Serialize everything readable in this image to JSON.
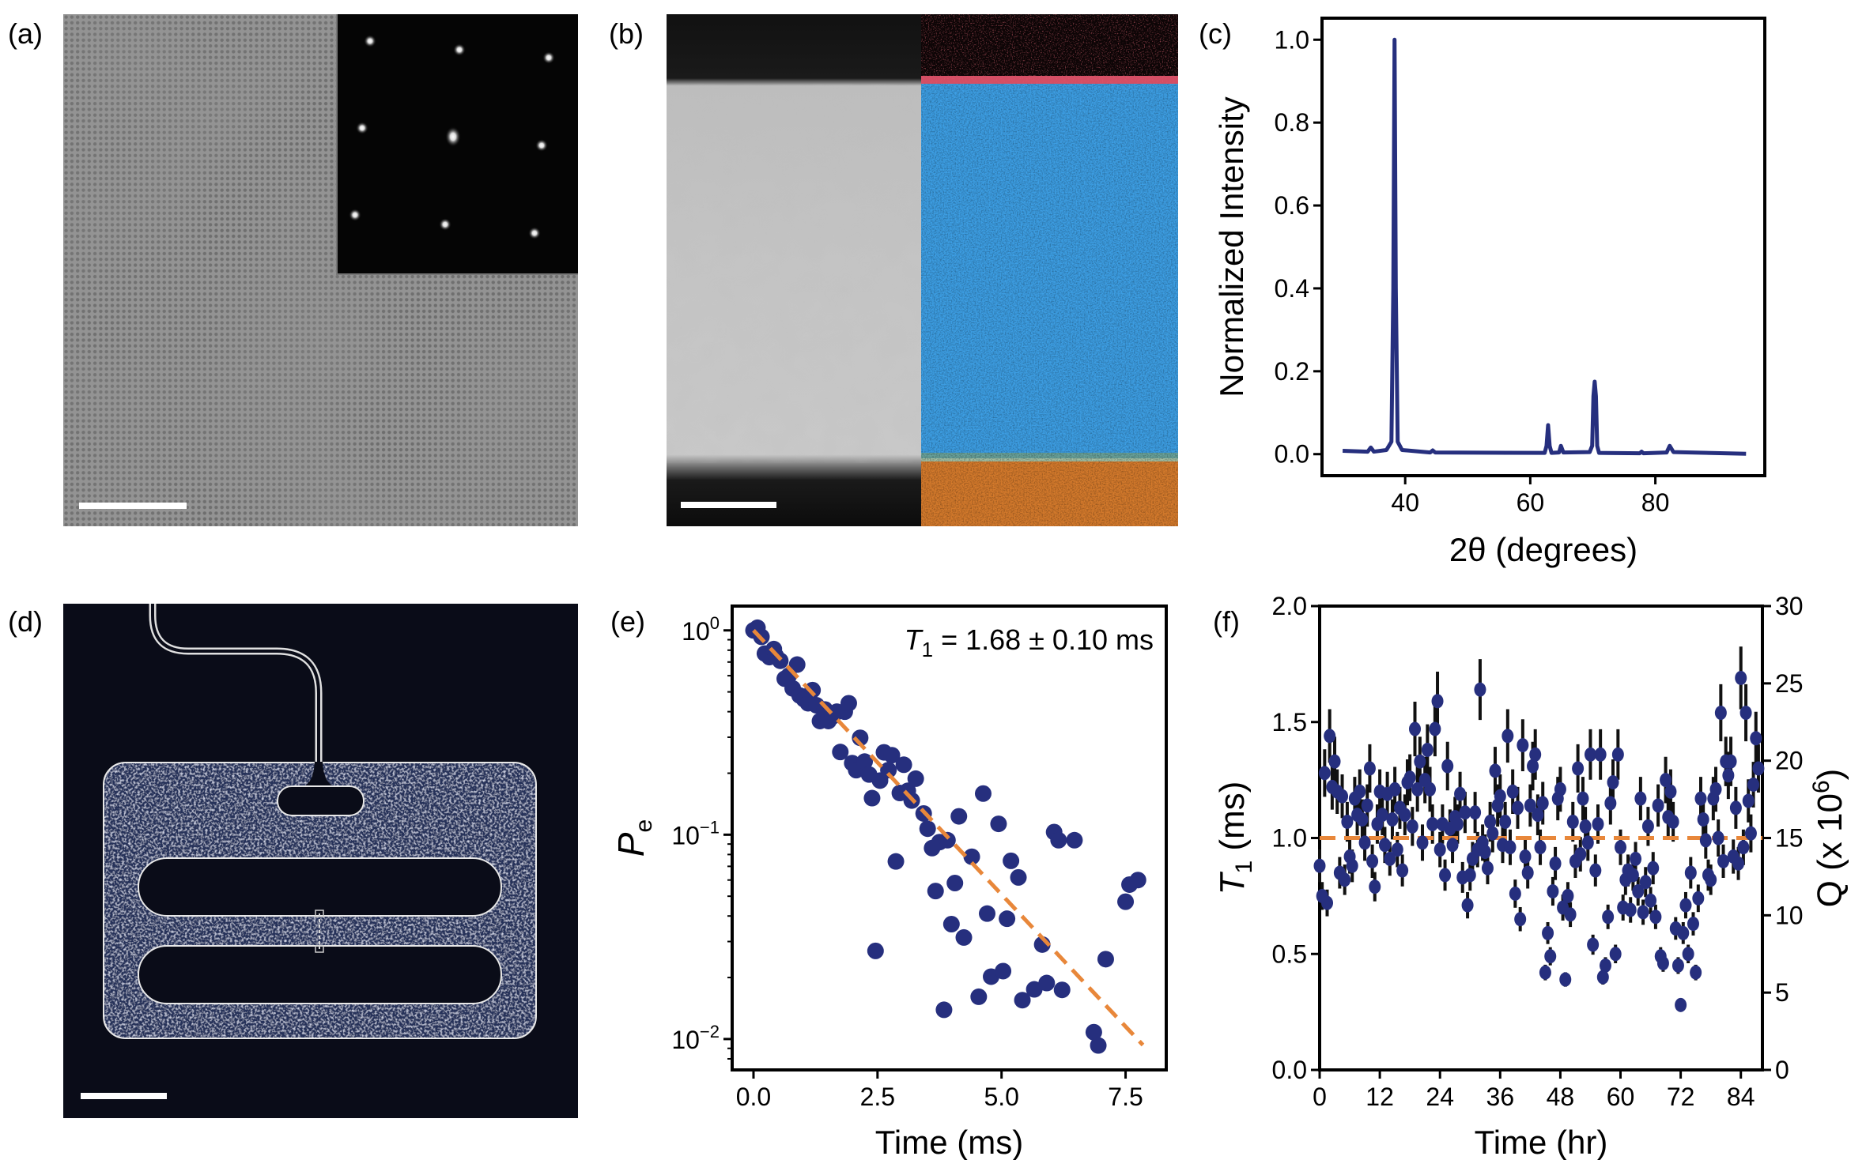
{
  "panels": {
    "a": "(a)",
    "b": "(b)",
    "c": "(c)",
    "d": "(d)",
    "e": "(e)",
    "f": "(f)"
  },
  "images": {
    "a": {
      "content": "lattice micrograph with diffraction pattern inset",
      "base_color": "#8a8a8a",
      "inset_color": "#050505"
    },
    "b": {
      "content": "cross-section image and elemental map",
      "gray_color": "#c9c9c9",
      "blue_color": "#3d9ee3",
      "orange_color": "#d47a2c",
      "red_color": "#c0303a",
      "pink_color": "#e9566f"
    },
    "d": {
      "content": "device micrograph",
      "background_color": "#0a0c18",
      "pad_color": "#28305a",
      "outline_color": "#e8e8e8"
    }
  },
  "colors": {
    "series": "#262f7e",
    "fit": "#e8873a",
    "error": "#111111"
  },
  "chart_data": [
    {
      "id": "c",
      "type": "line",
      "title": "",
      "xlabel": "2θ (degrees)",
      "ylabel": "Normalized Intensity",
      "xlim": [
        26.7,
        97.5
      ],
      "ylim": [
        -0.052,
        1.052
      ],
      "xticks": [
        40,
        60,
        80
      ],
      "xtick_labels": [
        "40",
        "60",
        "80"
      ],
      "yticks": [
        0,
        0.2,
        0.4,
        0.6,
        0.8,
        1.0
      ],
      "ytick_labels": [
        "0.0",
        "0.2",
        "0.4",
        "0.6",
        "0.8",
        "1.0"
      ],
      "grid": false,
      "points": [
        [
          30,
          0.008
        ],
        [
          34,
          0.006
        ],
        [
          34.5,
          0.016
        ],
        [
          35,
          0.006
        ],
        [
          37,
          0.01
        ],
        [
          37.8,
          0.03
        ],
        [
          38.1,
          0.4
        ],
        [
          38.3,
          1.0
        ],
        [
          38.5,
          0.4
        ],
        [
          38.8,
          0.03
        ],
        [
          39.5,
          0.01
        ],
        [
          44,
          0.004
        ],
        [
          44.4,
          0.009
        ],
        [
          44.8,
          0.004
        ],
        [
          62.3,
          0.003
        ],
        [
          62.6,
          0.02
        ],
        [
          62.85,
          0.07
        ],
        [
          63.1,
          0.02
        ],
        [
          63.4,
          0.003
        ],
        [
          64.6,
          0.004
        ],
        [
          64.9,
          0.02
        ],
        [
          65.3,
          0.004
        ],
        [
          69.5,
          0.005
        ],
        [
          69.9,
          0.02
        ],
        [
          70.1,
          0.14
        ],
        [
          70.3,
          0.175
        ],
        [
          70.5,
          0.14
        ],
        [
          70.7,
          0.02
        ],
        [
          71,
          0.003
        ],
        [
          77.5,
          0.002
        ],
        [
          77.8,
          0.006
        ],
        [
          78.1,
          0.002
        ],
        [
          81.8,
          0.004
        ],
        [
          82.3,
          0.02
        ],
        [
          82.9,
          0.005
        ],
        [
          94.5,
          0.001
        ]
      ]
    },
    {
      "id": "e",
      "type": "scatter",
      "yscale": "log",
      "xlabel": "Time (ms)",
      "ylabel": {
        "main": "P",
        "sub": "e"
      },
      "xlim": [
        -0.43,
        8.32
      ],
      "ylim": [
        0.00706,
        1.315
      ],
      "xticks": [
        0,
        2.5,
        5,
        7.5
      ],
      "xtick_labels": [
        "0.0",
        "2.5",
        "5.0",
        "7.5"
      ],
      "yticks": [
        1,
        0.1,
        0.01
      ],
      "ytick_base": "10",
      "ytick_exponents": [
        "0",
        "−1",
        "−2"
      ],
      "annotation": {
        "symbol": "T",
        "sub": "1",
        "text": " = 1.68 ± 0.10 ms"
      },
      "fit": {
        "type": "exponential",
        "T1": 1.68,
        "x_range": [
          0,
          7.85
        ]
      },
      "points": [
        [
          0,
          1.0
        ],
        [
          0.08,
          1.03
        ],
        [
          0.16,
          0.93
        ],
        [
          0.23,
          0.77
        ],
        [
          0.32,
          0.74
        ],
        [
          0.41,
          0.81
        ],
        [
          0.45,
          0.75
        ],
        [
          0.54,
          0.71
        ],
        [
          0.63,
          0.58
        ],
        [
          0.71,
          0.6
        ],
        [
          0.79,
          0.52
        ],
        [
          0.88,
          0.68
        ],
        [
          0.93,
          0.48
        ],
        [
          1.02,
          0.46
        ],
        [
          1.1,
          0.44
        ],
        [
          1.19,
          0.51
        ],
        [
          1.27,
          0.43
        ],
        [
          1.34,
          0.36
        ],
        [
          1.44,
          0.41
        ],
        [
          1.51,
          0.36
        ],
        [
          1.6,
          0.38
        ],
        [
          1.68,
          0.4
        ],
        [
          1.84,
          0.4
        ],
        [
          1.92,
          0.44
        ],
        [
          1.75,
          0.254
        ],
        [
          1.99,
          0.224
        ],
        [
          2.07,
          0.207
        ],
        [
          2.15,
          0.298
        ],
        [
          2.24,
          0.228
        ],
        [
          2.33,
          0.197
        ],
        [
          2.39,
          0.151
        ],
        [
          2.46,
          0.027
        ],
        [
          2.55,
          0.184
        ],
        [
          2.63,
          0.253
        ],
        [
          2.72,
          0.207
        ],
        [
          2.79,
          0.245
        ],
        [
          2.87,
          0.074
        ],
        [
          2.95,
          0.16
        ],
        [
          3.03,
          0.22
        ],
        [
          3.11,
          0.164
        ],
        [
          3.19,
          0.147
        ],
        [
          3.27,
          0.188
        ],
        [
          3.43,
          0.127
        ],
        [
          3.51,
          0.107
        ],
        [
          3.6,
          0.086
        ],
        [
          3.67,
          0.053
        ],
        [
          3.75,
          0.092
        ],
        [
          3.84,
          0.0139
        ],
        [
          3.91,
          0.094
        ],
        [
          3.99,
          0.0365
        ],
        [
          4.06,
          0.058
        ],
        [
          4.14,
          0.123
        ],
        [
          4.24,
          0.0314
        ],
        [
          4.4,
          0.078
        ],
        [
          4.54,
          0.0161
        ],
        [
          4.63,
          0.159
        ],
        [
          4.71,
          0.0411
        ],
        [
          4.79,
          0.0202
        ],
        [
          4.94,
          0.113
        ],
        [
          5.03,
          0.0215
        ],
        [
          5.11,
          0.0388
        ],
        [
          5.19,
          0.0745
        ],
        [
          5.34,
          0.0618
        ],
        [
          5.42,
          0.0155
        ],
        [
          5.66,
          0.0175
        ],
        [
          5.82,
          0.029
        ],
        [
          5.91,
          0.0188
        ],
        [
          6.06,
          0.103
        ],
        [
          6.15,
          0.094
        ],
        [
          6.22,
          0.0174
        ],
        [
          6.47,
          0.094
        ],
        [
          6.86,
          0.0108
        ],
        [
          6.95,
          0.0093
        ],
        [
          7.1,
          0.0246
        ],
        [
          7.5,
          0.047
        ],
        [
          7.58,
          0.057
        ],
        [
          7.75,
          0.06
        ]
      ]
    },
    {
      "id": "f",
      "type": "scatter",
      "xlabel": "Time (hr)",
      "ylabel": {
        "main": "T",
        "sub": "1",
        "unit": " (ms)"
      },
      "y2label": {
        "main": "Q (x 10",
        "sup": "6",
        "end": ")"
      },
      "xlim": [
        0,
        88.3
      ],
      "ylim": [
        0,
        2.0
      ],
      "y2lim": [
        0,
        30
      ],
      "xticks": [
        0,
        12,
        24,
        36,
        48,
        60,
        72,
        84
      ],
      "xtick_labels": [
        "0",
        "12",
        "24",
        "36",
        "48",
        "60",
        "72",
        "84"
      ],
      "yticks": [
        0,
        0.5,
        1.0,
        1.5,
        2.0
      ],
      "ytick_labels": [
        "0.0",
        "0.5",
        "1.0",
        "1.5",
        "2.0"
      ],
      "y2ticks": [
        0,
        5,
        10,
        15,
        20,
        25,
        30
      ],
      "y2tick_labels": [
        "0",
        "5",
        "10",
        "15",
        "20",
        "25",
        "30"
      ],
      "reference_line": 1.0,
      "yerr_relative": 0.08,
      "points": [
        [
          0,
          0.88
        ],
        [
          0.5,
          0.75
        ],
        [
          1,
          1.28
        ],
        [
          1.5,
          0.72
        ],
        [
          2,
          1.44
        ],
        [
          2.5,
          1.22
        ],
        [
          3,
          1.33
        ],
        [
          3.5,
          1.2
        ],
        [
          4,
          0.85
        ],
        [
          4.5,
          1.18
        ],
        [
          5,
          0.82
        ],
        [
          5.5,
          1.07
        ],
        [
          6,
          0.92
        ],
        [
          6.5,
          0.88
        ],
        [
          7,
          1.17
        ],
        [
          7.5,
          1.1
        ],
        [
          8,
          1.2
        ],
        [
          8.5,
          1.08
        ],
        [
          9,
          0.98
        ],
        [
          9.5,
          1.14
        ],
        [
          10,
          1.3
        ],
        [
          10.5,
          0.9
        ],
        [
          11,
          0.79
        ],
        [
          11.5,
          1.06
        ],
        [
          12,
          1.2
        ],
        [
          12.5,
          1.1
        ],
        [
          13,
          0.97
        ],
        [
          13.5,
          1.19
        ],
        [
          14,
          0.91
        ],
        [
          14.5,
          1.08
        ],
        [
          15,
          1.21
        ],
        [
          15.5,
          0.95
        ],
        [
          16,
          1.13
        ],
        [
          16.5,
          0.86
        ],
        [
          17,
          1.1
        ],
        [
          17.5,
          1.24
        ],
        [
          18,
          1.26
        ],
        [
          18.5,
          1.05
        ],
        [
          19,
          1.47
        ],
        [
          19.5,
          1.21
        ],
        [
          20,
          1.33
        ],
        [
          20.5,
          0.98
        ],
        [
          21,
          1.25
        ],
        [
          21.5,
          1.38
        ],
        [
          22,
          1.21
        ],
        [
          22.5,
          1.06
        ],
        [
          23,
          1.47
        ],
        [
          23.5,
          1.59
        ],
        [
          24,
          0.95
        ],
        [
          24.5,
          1.06
        ],
        [
          25,
          0.84
        ],
        [
          25.5,
          1.31
        ],
        [
          26,
          1.04
        ],
        [
          26.5,
          0.97
        ],
        [
          27,
          1.09
        ],
        [
          27.5,
          1.06
        ],
        [
          28,
          1.19
        ],
        [
          28.5,
          0.83
        ],
        [
          29,
          1.11
        ],
        [
          29.5,
          0.71
        ],
        [
          30,
          0.84
        ],
        [
          30.5,
          0.91
        ],
        [
          31,
          1.11
        ],
        [
          31.5,
          0.95
        ],
        [
          32,
          1.64
        ],
        [
          32.5,
          0.98
        ],
        [
          33,
          0.94
        ],
        [
          33.5,
          0.87
        ],
        [
          34,
          1.07
        ],
        [
          34.5,
          1.02
        ],
        [
          35,
          1.29
        ],
        [
          35.5,
          1.14
        ],
        [
          36,
          1.18
        ],
        [
          36.5,
          0.97
        ],
        [
          37,
          1.07
        ],
        [
          37.5,
          1.44
        ],
        [
          38,
          0.96
        ],
        [
          38.5,
          1.2
        ],
        [
          39,
          0.76
        ],
        [
          39.5,
          1.13
        ],
        [
          40,
          0.65
        ],
        [
          40.5,
          1.4
        ],
        [
          41,
          0.92
        ],
        [
          41.5,
          0.85
        ],
        [
          42,
          1.14
        ],
        [
          42.5,
          1.31
        ],
        [
          43,
          1.36
        ],
        [
          43.5,
          1.1
        ],
        [
          44,
          0.96
        ],
        [
          44.5,
          1.15
        ],
        [
          45,
          0.42
        ],
        [
          45.5,
          0.59
        ],
        [
          46,
          0.49
        ],
        [
          46.5,
          0.77
        ],
        [
          47,
          0.89
        ],
        [
          47.5,
          1.17
        ],
        [
          48,
          1.21
        ],
        [
          48.5,
          0.7
        ],
        [
          49,
          0.39
        ],
        [
          49.5,
          0.75
        ],
        [
          50,
          0.67
        ],
        [
          50.5,
          1.07
        ],
        [
          51,
          0.9
        ],
        [
          51.5,
          1.3
        ],
        [
          52,
          0.93
        ],
        [
          52.5,
          1.17
        ],
        [
          53,
          1.05
        ],
        [
          53.5,
          0.98
        ],
        [
          54,
          1.36
        ],
        [
          54.5,
          0.54
        ],
        [
          55,
          0.86
        ],
        [
          55.5,
          1.06
        ],
        [
          56,
          1.36
        ],
        [
          56.5,
          0.4
        ],
        [
          57,
          0.45
        ],
        [
          57.5,
          0.66
        ],
        [
          58,
          1.15
        ],
        [
          58.5,
          1.24
        ],
        [
          59,
          0.5
        ],
        [
          59.5,
          1.36
        ],
        [
          60,
          0.96
        ],
        [
          60.5,
          0.7
        ],
        [
          61,
          0.82
        ],
        [
          61.5,
          0.86
        ],
        [
          62,
          0.69
        ],
        [
          62.5,
          0.84
        ],
        [
          63,
          0.91
        ],
        [
          63.5,
          0.77
        ],
        [
          64,
          1.17
        ],
        [
          64.5,
          0.68
        ],
        [
          65,
          0.81
        ],
        [
          65.5,
          1.05
        ],
        [
          66,
          0.73
        ],
        [
          66.5,
          0.87
        ],
        [
          67,
          0.66
        ],
        [
          67.5,
          1.14
        ],
        [
          68,
          0.49
        ],
        [
          68.5,
          0.46
        ],
        [
          69,
          1.25
        ],
        [
          69.5,
          1.09
        ],
        [
          70,
          1.2
        ],
        [
          70.5,
          1.07
        ],
        [
          71,
          0.61
        ],
        [
          71.5,
          0.45
        ],
        [
          72,
          0.28
        ],
        [
          72.5,
          0.59
        ],
        [
          73,
          0.71
        ],
        [
          73.5,
          0.5
        ],
        [
          74,
          0.85
        ],
        [
          74.5,
          0.63
        ],
        [
          75,
          0.42
        ],
        [
          75.5,
          0.74
        ],
        [
          76,
          1.17
        ],
        [
          76.5,
          1.08
        ],
        [
          77,
          0.99
        ],
        [
          77.5,
          0.84
        ],
        [
          78,
          0.82
        ],
        [
          78.5,
          1.17
        ],
        [
          79,
          1.21
        ],
        [
          79.5,
          1.0
        ],
        [
          80,
          1.54
        ],
        [
          80.5,
          0.9
        ],
        [
          81,
          1.33
        ],
        [
          81.5,
          1.27
        ],
        [
          82,
          1.33
        ],
        [
          82.5,
          0.92
        ],
        [
          83,
          1.13
        ],
        [
          83.5,
          0.89
        ],
        [
          84,
          1.69
        ],
        [
          84.5,
          0.96
        ],
        [
          85,
          1.54
        ],
        [
          85.5,
          1.16
        ],
        [
          86,
          1.02
        ],
        [
          86.5,
          1.23
        ],
        [
          87,
          1.43
        ],
        [
          87.5,
          1.3
        ]
      ]
    }
  ]
}
